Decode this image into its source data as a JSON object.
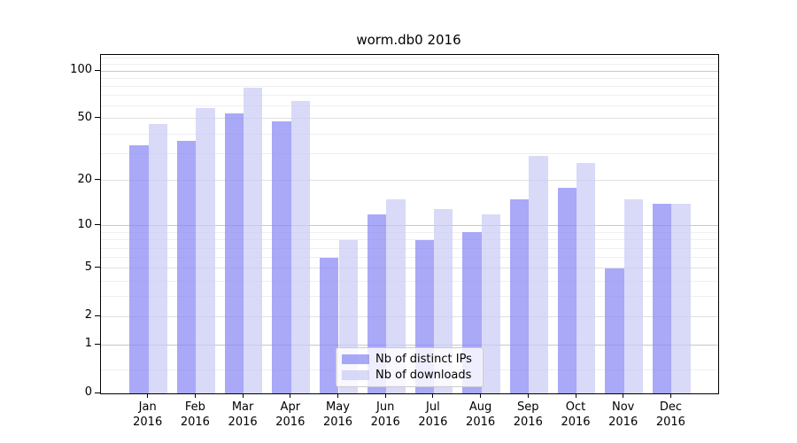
{
  "chart_data": {
    "type": "bar",
    "title": "worm.db0 2016",
    "categories": [
      "Jan",
      "Feb",
      "Mar",
      "Apr",
      "May",
      "Jun",
      "Jul",
      "Aug",
      "Sep",
      "Oct",
      "Nov",
      "Dec"
    ],
    "category_year": "2016",
    "series": [
      {
        "name": "Nb of distinct IPs",
        "color": "#a9a9f8",
        "fill_rgba": "rgba(136,136,245,0.72)",
        "values": [
          34,
          36,
          54,
          48,
          6,
          12,
          8,
          9,
          15,
          18,
          5,
          14
        ]
      },
      {
        "name": "Nb of downloads",
        "color": "#d9d9f6",
        "fill_rgba": "rgba(202,202,245,0.72)",
        "values": [
          46,
          58,
          78,
          65,
          8,
          15,
          13,
          12,
          29,
          26,
          15,
          14
        ]
      }
    ],
    "xlabel": "",
    "ylabel": "",
    "yscale": "symlog",
    "y_ticks": [
      0,
      1,
      2,
      5,
      10,
      20,
      50,
      100
    ],
    "ylim": [
      0,
      126
    ],
    "grid": "on",
    "gridlines": {
      "decade": [
        1,
        10,
        100
      ],
      "labeled": [
        2,
        5,
        20,
        50
      ],
      "minor": [
        0.4,
        3,
        4,
        6,
        7,
        8,
        9,
        30,
        40,
        60,
        70,
        80,
        90,
        110,
        120
      ]
    },
    "legend_position": "lower center"
  },
  "colors": {
    "background": "#ffffff",
    "axis": "#000000",
    "text": "#000000",
    "grid_decade": "#c8c8c8",
    "grid_labeled": "#e1e1e1",
    "grid_minor": "#efefef",
    "legend_border": "#cccccc",
    "legend_background": "rgba(255,255,255,0.8)"
  }
}
